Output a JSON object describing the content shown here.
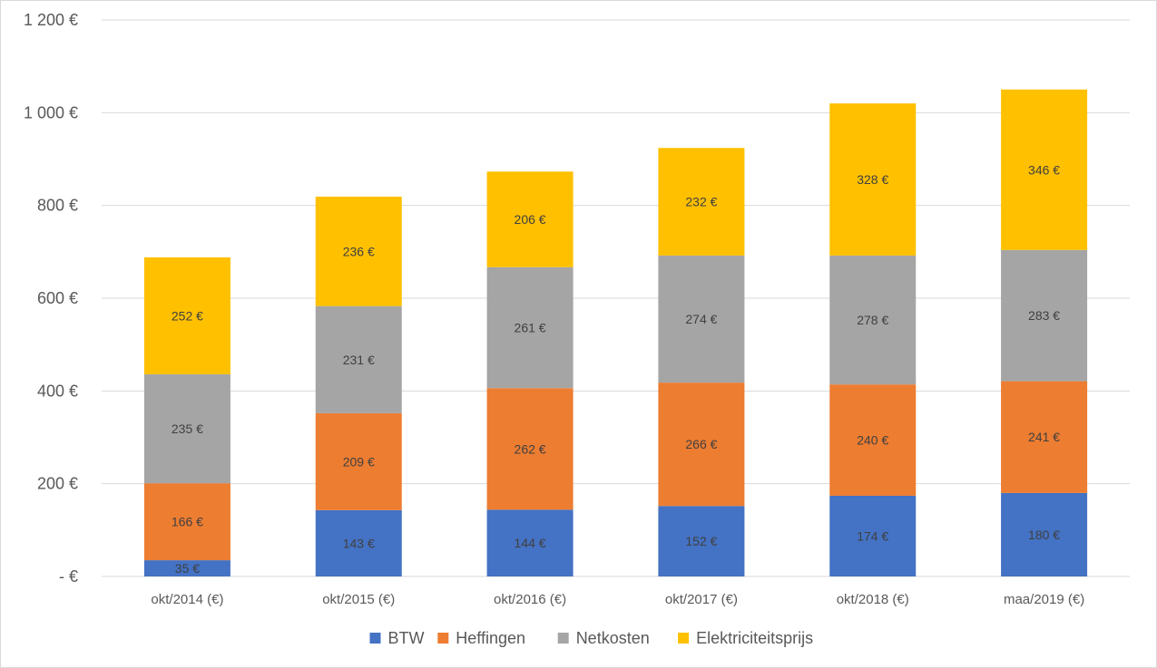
{
  "chart_data": {
    "type": "bar",
    "stacked": true,
    "categories": [
      "okt/2014 (€)",
      "okt/2015 (€)",
      "okt/2016 (€)",
      "okt/2017 (€)",
      "okt/2018 (€)",
      "maa/2019 (€)"
    ],
    "series": [
      {
        "name": "BTW",
        "color": "#4472C4",
        "values": [
          35,
          143,
          144,
          152,
          174,
          180
        ],
        "labels": [
          "35 €",
          "143 €",
          "144 €",
          "152 €",
          "174 €",
          "180 €"
        ]
      },
      {
        "name": "Heffingen",
        "color": "#ED7D31",
        "values": [
          166,
          209,
          262,
          266,
          240,
          241
        ],
        "labels": [
          "166 €",
          "209 €",
          "262 €",
          "266 €",
          "240 €",
          "241 €"
        ]
      },
      {
        "name": "Netkosten",
        "color": "#A5A5A5",
        "values": [
          235,
          231,
          261,
          274,
          278,
          283
        ],
        "labels": [
          "235 €",
          "231 €",
          "261 €",
          "274 €",
          "278 €",
          "283 €"
        ]
      },
      {
        "name": "Elektriciteitsprijs",
        "color": "#FFC000",
        "values": [
          252,
          236,
          206,
          232,
          328,
          346
        ],
        "labels": [
          "252 €",
          "236 €",
          "206 €",
          "232 €",
          "328 €",
          "346 €"
        ]
      }
    ],
    "ylim": [
      0,
      1200
    ],
    "yticks": [
      0,
      200,
      400,
      600,
      800,
      1000,
      1200
    ],
    "ytick_labels": [
      "-   €",
      "200 €",
      "400 €",
      "600 €",
      "800 €",
      "1 000 €",
      "1 200 €"
    ],
    "grid": true,
    "legend_position": "bottom-center"
  }
}
